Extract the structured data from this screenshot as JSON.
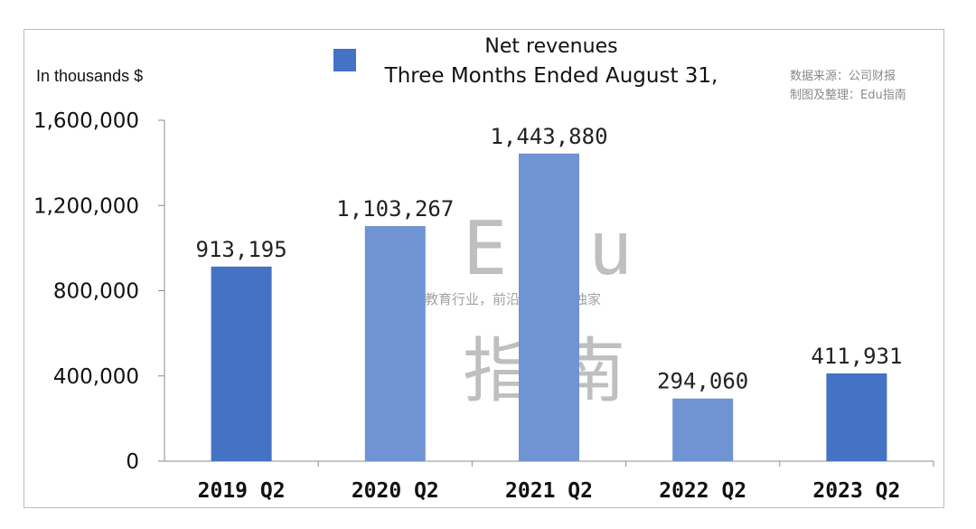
{
  "colors": {
    "bar_dark": "#4472c4",
    "bar_light": "#6f93d3",
    "axis": "#8c8c8c",
    "frame": "#bdbdbd"
  },
  "header": {
    "unit_label": "In thousands $",
    "source_line1": "数据来源：公司财报",
    "source_line2": "制图及整理：Edu指南"
  },
  "watermark": {
    "edu": "Edu",
    "tagline": "教育行业，前沿、深度、独家",
    "cn": "指南"
  },
  "chart_data": {
    "type": "bar",
    "title": "Net revenues",
    "legend": "Three Months Ended August 31,",
    "ylabel": "In thousands $",
    "xlabel": "",
    "categories": [
      "2019 Q2",
      "2020 Q2",
      "2021 Q2",
      "2022 Q2",
      "2023 Q2"
    ],
    "values": [
      913195,
      1103267,
      1443880,
      294060,
      411931
    ],
    "value_labels": [
      "913,195",
      "1,103,267",
      "1,443,880",
      "294,060",
      "411,931"
    ],
    "bar_shades": [
      "dark",
      "light",
      "light",
      "light",
      "dark"
    ],
    "ylim": [
      0,
      1600000
    ],
    "yticks": [
      0,
      400000,
      800000,
      1200000,
      1600000
    ],
    "ytick_labels": [
      "0",
      "400,000",
      "800,000",
      "1,200,000",
      "1,600,000"
    ],
    "grid": false,
    "legend_position": "top-center"
  }
}
